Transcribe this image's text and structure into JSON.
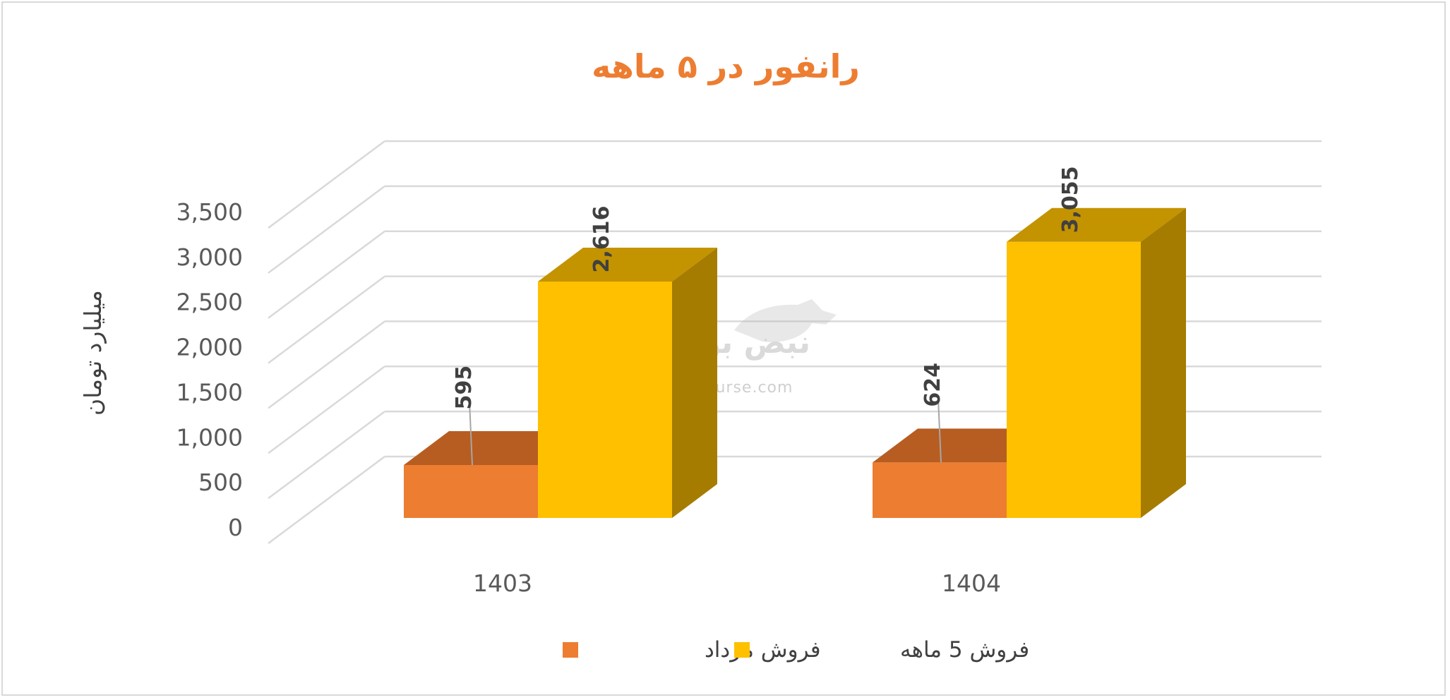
{
  "chart_data": {
    "type": "bar",
    "title": "رانفور در ۵ ماهه",
    "ylabel": "میلیارد تومان",
    "xlabel": "",
    "categories": [
      "1403",
      "1404"
    ],
    "ylim": [
      0,
      3500
    ],
    "yticks": [
      0,
      500,
      1000,
      1500,
      2000,
      2500,
      3000,
      3500
    ],
    "ytick_labels": [
      "0",
      "500",
      "1,000",
      "1,500",
      "2,000",
      "2,500",
      "3,000",
      "3,500"
    ],
    "series": [
      {
        "name": "فروش مرداد",
        "color": "#ed7d31",
        "values": [
          595,
          624
        ],
        "labels": [
          "595",
          "624"
        ]
      },
      {
        "name": "فروش 5  ماهه",
        "color": "#ffc000",
        "values": [
          2616,
          3055
        ],
        "labels": [
          "2,616",
          "3,055"
        ]
      }
    ],
    "grid": true,
    "legend_position": "bottom",
    "style": "3d-clustered-column"
  },
  "watermark": {
    "logo_text": "نبض بورس",
    "url": "nabzebourse.com"
  }
}
